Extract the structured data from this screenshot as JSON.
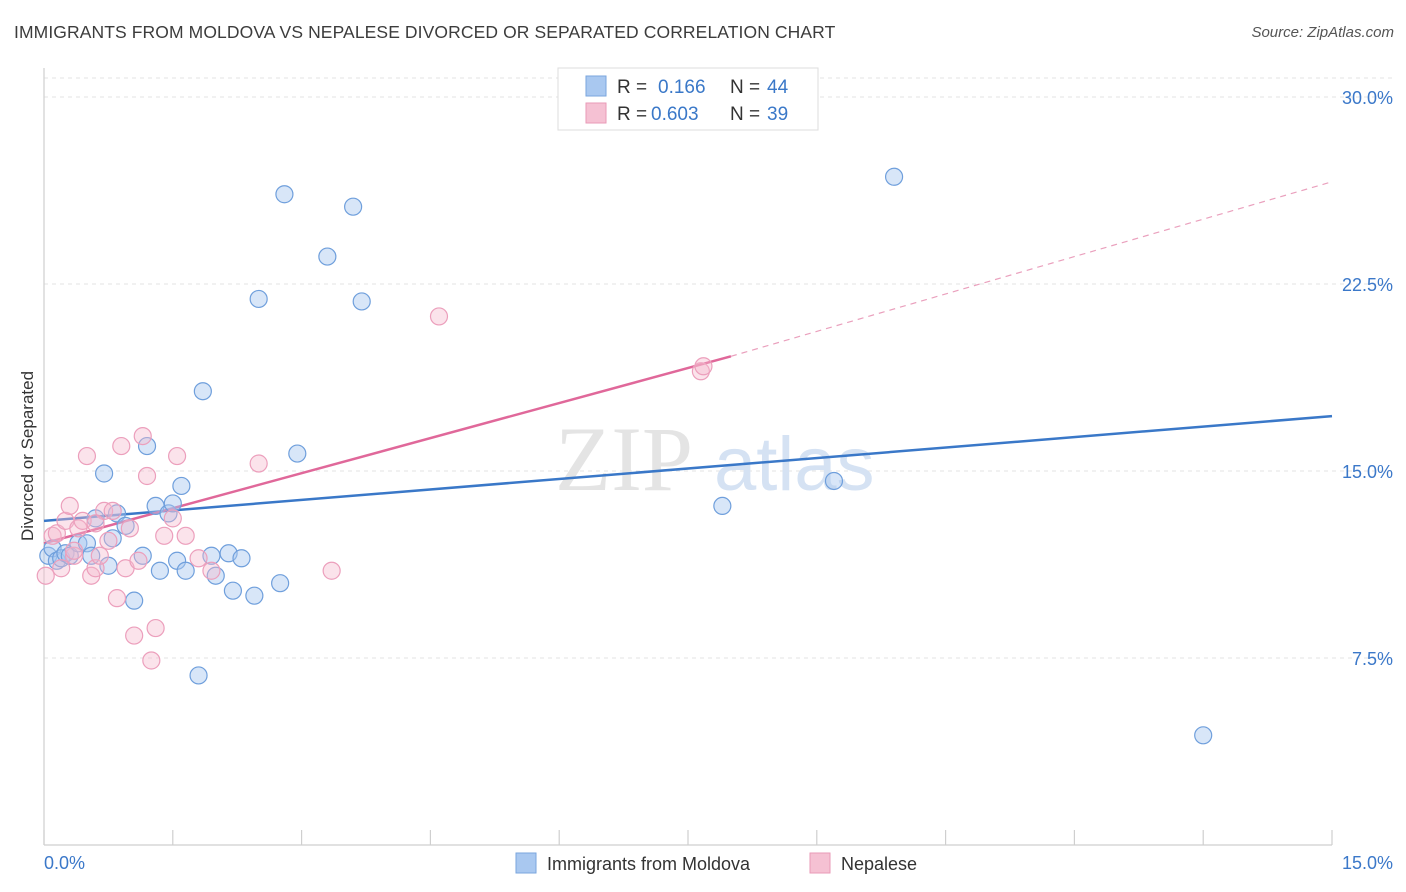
{
  "header": {
    "title": "IMMIGRANTS FROM MOLDOVA VS NEPALESE DIVORCED OR SEPARATED CORRELATION CHART",
    "source": "Source: ZipAtlas.com"
  },
  "colors": {
    "blue": "#3a78c8",
    "blue_fill": "#a9c8f0",
    "pink": "#e0689a",
    "pink_fill": "#f5b8cd",
    "tick_text": "#3b78c9"
  },
  "chart_data": {
    "type": "scatter",
    "title": "IMMIGRANTS FROM MOLDOVA VS NEPALESE DIVORCED OR SEPARATED CORRELATION CHART",
    "xlabel": "",
    "ylabel": "Divorced or Separated",
    "xlim": [
      0,
      15
    ],
    "ylim": [
      0,
      30
    ],
    "x_tick_labels": [
      "0.0%",
      "15.0%"
    ],
    "y_ticks": [
      7.5,
      15.0,
      22.5,
      30.0
    ],
    "y_tick_labels": [
      "7.5%",
      "15.0%",
      "22.5%",
      "30.0%"
    ],
    "grid": true,
    "watermark": "ZIPatlas",
    "legend": {
      "position": "top-center",
      "entries": [
        {
          "r_label": "R =",
          "r_value": "0.166",
          "n_label": "N =",
          "n_value": "44"
        },
        {
          "r_label": "R =",
          "r_value": "0.603",
          "n_label": "N =",
          "n_value": "39"
        }
      ]
    },
    "series": [
      {
        "name": "Immigrants from Moldova",
        "color": "#3a78c8",
        "trend": {
          "x": [
            0,
            15
          ],
          "y": [
            13.0,
            17.2
          ]
        },
        "points": [
          [
            0.05,
            11.6
          ],
          [
            0.1,
            11.9
          ],
          [
            0.15,
            11.4
          ],
          [
            0.2,
            11.5
          ],
          [
            0.25,
            11.7
          ],
          [
            0.3,
            11.6
          ],
          [
            0.4,
            12.1
          ],
          [
            0.5,
            12.1
          ],
          [
            0.6,
            13.1
          ],
          [
            0.7,
            14.9
          ],
          [
            0.75,
            11.2
          ],
          [
            0.8,
            12.3
          ],
          [
            0.85,
            13.3
          ],
          [
            0.95,
            12.8
          ],
          [
            1.05,
            9.8
          ],
          [
            1.15,
            11.6
          ],
          [
            1.2,
            16.0
          ],
          [
            1.3,
            13.6
          ],
          [
            1.35,
            11.0
          ],
          [
            1.45,
            13.3
          ],
          [
            1.5,
            13.7
          ],
          [
            1.55,
            11.4
          ],
          [
            1.6,
            14.4
          ],
          [
            1.65,
            11.0
          ],
          [
            1.8,
            6.8
          ],
          [
            1.85,
            18.2
          ],
          [
            1.95,
            11.6
          ],
          [
            2.0,
            10.8
          ],
          [
            2.15,
            11.7
          ],
          [
            2.2,
            10.2
          ],
          [
            2.3,
            11.5
          ],
          [
            2.45,
            10.0
          ],
          [
            2.5,
            21.9
          ],
          [
            2.75,
            10.5
          ],
          [
            2.8,
            26.1
          ],
          [
            2.95,
            15.7
          ],
          [
            3.3,
            23.6
          ],
          [
            3.6,
            25.6
          ],
          [
            3.7,
            21.8
          ],
          [
            7.9,
            13.6
          ],
          [
            9.2,
            14.6
          ],
          [
            9.9,
            26.8
          ],
          [
            13.5,
            4.4
          ],
          [
            0.55,
            11.6
          ]
        ]
      },
      {
        "name": "Nepalese",
        "color": "#e0689a",
        "trend": {
          "x": [
            0,
            8.0
          ],
          "y": [
            12.1,
            19.6
          ]
        },
        "trend_extension": {
          "x": [
            8.0,
            15
          ],
          "y": [
            19.6,
            26.6
          ]
        },
        "points": [
          [
            0.02,
            10.8
          ],
          [
            0.1,
            12.4
          ],
          [
            0.15,
            12.5
          ],
          [
            0.2,
            11.1
          ],
          [
            0.25,
            13.0
          ],
          [
            0.3,
            13.6
          ],
          [
            0.35,
            11.6
          ],
          [
            0.4,
            12.7
          ],
          [
            0.45,
            13.0
          ],
          [
            0.5,
            15.6
          ],
          [
            0.55,
            10.8
          ],
          [
            0.6,
            11.1
          ],
          [
            0.65,
            11.6
          ],
          [
            0.7,
            13.4
          ],
          [
            0.75,
            12.2
          ],
          [
            0.8,
            13.4
          ],
          [
            0.85,
            9.9
          ],
          [
            0.9,
            16.0
          ],
          [
            0.95,
            11.1
          ],
          [
            1.0,
            12.7
          ],
          [
            1.05,
            8.4
          ],
          [
            1.1,
            11.4
          ],
          [
            1.15,
            16.4
          ],
          [
            1.2,
            14.8
          ],
          [
            1.25,
            7.4
          ],
          [
            1.3,
            8.7
          ],
          [
            1.4,
            12.4
          ],
          [
            1.5,
            13.1
          ],
          [
            1.55,
            15.6
          ],
          [
            1.65,
            12.4
          ],
          [
            1.8,
            11.5
          ],
          [
            1.95,
            11.0
          ],
          [
            2.5,
            15.3
          ],
          [
            3.35,
            11.0
          ],
          [
            4.6,
            21.2
          ],
          [
            7.65,
            19.0
          ],
          [
            7.68,
            19.2
          ],
          [
            0.35,
            11.8
          ],
          [
            0.6,
            12.9
          ]
        ]
      }
    ]
  },
  "bottom_legend": {
    "items": [
      "Immigrants from Moldova",
      "Nepalese"
    ]
  }
}
